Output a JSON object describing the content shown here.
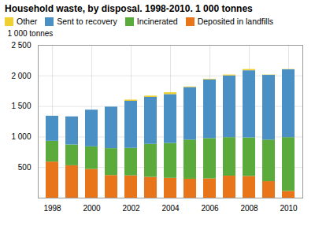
{
  "chart_data": {
    "type": "bar",
    "stacked": true,
    "title": "Household waste, by disposal. 1998-2010. 1 000 tonnes",
    "ylabel": "1 000 tonnes",
    "categories": [
      "1998",
      null,
      "2000",
      null,
      "2002",
      null,
      "2004",
      null,
      "2006",
      null,
      "2008",
      null,
      "2010"
    ],
    "series": [
      {
        "name": "Deposited in landfills",
        "color": "#e8751a",
        "values": [
          590,
          530,
          470,
          370,
          365,
          340,
          325,
          310,
          315,
          360,
          355,
          270,
          110
        ]
      },
      {
        "name": "Incinerated",
        "color": "#5aaa3c",
        "values": [
          340,
          340,
          370,
          440,
          450,
          540,
          570,
          640,
          660,
          630,
          630,
          680,
          880
        ]
      },
      {
        "name": "Sent to recovery",
        "color": "#4a90c4",
        "values": [
          410,
          460,
          600,
          680,
          770,
          770,
          800,
          860,
          960,
          1010,
          1100,
          1060,
          1110
        ]
      },
      {
        "name": "Other",
        "color": "#f0d030",
        "values": [
          0,
          0,
          0,
          0,
          20,
          20,
          30,
          10,
          10,
          15,
          20,
          5,
          5
        ]
      }
    ],
    "ylim": [
      0,
      2500
    ],
    "yticks": [
      500,
      {
        "value": 1000,
        "label": "1 000"
      },
      {
        "value": 1500,
        "label": "1 500"
      },
      {
        "value": 2000,
        "label": "2 000"
      },
      {
        "value": 2500,
        "label": "2 500"
      }
    ],
    "grid": true,
    "legend": "upper left"
  }
}
